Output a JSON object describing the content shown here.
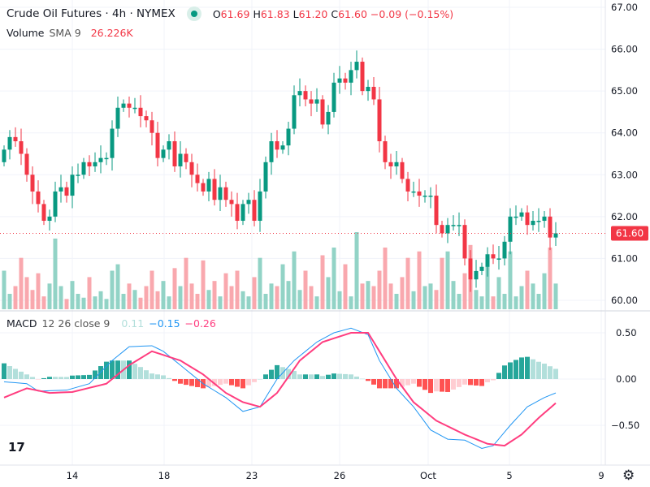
{
  "header": {
    "symbol_title": "Crude Oil Futures · 4h · NYMEX",
    "ohlc": {
      "o_label": "O",
      "o": "61.69",
      "h_label": "H",
      "h": "61.83",
      "l_label": "L",
      "l": "61.20",
      "c_label": "C",
      "c": "61.60",
      "change": "−0.09 (−0.15%)"
    }
  },
  "volume_legend": {
    "name": "Volume",
    "params": "SMA 9",
    "value": "26.226K"
  },
  "macd_legend": {
    "name": "MACD",
    "params": "12 26 close 9",
    "hist": "0.11",
    "macd": "−0.15",
    "signal": "−0.26"
  },
  "colors": {
    "up": "#089981",
    "down": "#f23645",
    "up_vol": "#92d3c6",
    "down_vol": "#f9a8ae",
    "macd": "#2196f3",
    "signal": "#ff3d7f",
    "hist_up_strong": "#26a69a",
    "hist_up_weak": "#b2dfdb",
    "hist_down_strong": "#ff5252",
    "hist_down_weak": "#ffcdd2"
  },
  "price_axis": {
    "labels": [
      "67.00",
      "66.00",
      "65.00",
      "64.00",
      "63.00",
      "62.00",
      "61.00",
      "60.00"
    ],
    "current": "61.60"
  },
  "macd_axis": {
    "labels": [
      "0.50",
      "0.00",
      "−0.50"
    ]
  },
  "time_axis": {
    "labels": [
      "14",
      "18",
      "23",
      "26",
      "Oct",
      "5",
      "9"
    ]
  },
  "chart_data": {
    "type": "candlestick",
    "price_range": [
      60,
      67
    ],
    "closes": [
      63.6,
      63.9,
      63.8,
      63.5,
      63.0,
      62.6,
      62.3,
      61.9,
      62.0,
      62.6,
      62.7,
      62.5,
      63.0,
      63.0,
      63.3,
      63.2,
      63.3,
      63.4,
      63.4,
      64.1,
      64.6,
      64.7,
      64.6,
      64.6,
      64.4,
      64.3,
      64.0,
      63.4,
      63.6,
      63.8,
      63.2,
      63.5,
      63.3,
      63.0,
      62.8,
      62.6,
      62.9,
      62.4,
      62.7,
      62.4,
      62.3,
      61.9,
      62.3,
      62.4,
      61.9,
      62.6,
      63.3,
      63.8,
      63.6,
      63.7,
      64.1,
      64.9,
      65.0,
      64.8,
      64.7,
      64.8,
      64.2,
      64.5,
      65.2,
      65.3,
      65.2,
      65.5,
      65.7,
      65.0,
      65.1,
      64.8,
      63.8,
      63.3,
      63.2,
      63.3,
      62.9,
      62.6,
      62.6,
      62.5,
      62.5,
      62.5,
      61.8,
      61.6,
      61.8,
      61.8,
      61.8,
      61.0,
      60.5,
      60.7,
      60.8,
      61.1,
      61.0,
      61.0,
      61.4,
      62.0,
      62.0,
      62.1,
      61.8,
      61.9,
      61.9,
      62.0,
      61.5,
      61.6
    ],
    "first_open": 63.3,
    "volumes_k": [
      30,
      12,
      18,
      40,
      25,
      15,
      28,
      10,
      20,
      55,
      18,
      8,
      22,
      12,
      9,
      25,
      10,
      14,
      8,
      30,
      35,
      12,
      20,
      15,
      9,
      18,
      30,
      14,
      22,
      10,
      32,
      18,
      40,
      20,
      12,
      38,
      15,
      22,
      10,
      28,
      18,
      30,
      14,
      10,
      25,
      40,
      12,
      20,
      18,
      35,
      22,
      45,
      15,
      30,
      18,
      10,
      42,
      25,
      48,
      14,
      35,
      10,
      60,
      20,
      22,
      18,
      30,
      48,
      20,
      12,
      25,
      40,
      14,
      45,
      18,
      20,
      15,
      40,
      45,
      22,
      12,
      28,
      50,
      15,
      10,
      38,
      10,
      25,
      12,
      45,
      10,
      18,
      30,
      20,
      12,
      28,
      48,
      20
    ],
    "macd_keyframes": [
      [
        0,
        -0.03
      ],
      [
        4,
        -0.05
      ],
      [
        6,
        -0.13
      ],
      [
        11,
        -0.12
      ],
      [
        15,
        -0.05
      ],
      [
        19,
        0.2
      ],
      [
        22,
        0.35
      ],
      [
        26,
        0.36
      ],
      [
        28,
        0.3
      ],
      [
        31,
        0.15
      ],
      [
        35,
        -0.05
      ],
      [
        39,
        -0.2
      ],
      [
        42,
        -0.35
      ],
      [
        45,
        -0.3
      ],
      [
        48,
        0.0
      ],
      [
        51,
        0.2
      ],
      [
        55,
        0.4
      ],
      [
        58,
        0.5
      ],
      [
        61,
        0.55
      ],
      [
        64,
        0.48
      ],
      [
        66,
        0.2
      ],
      [
        69,
        -0.1
      ],
      [
        72,
        -0.3
      ],
      [
        75,
        -0.55
      ],
      [
        78,
        -0.65
      ],
      [
        81,
        -0.66
      ],
      [
        84,
        -0.75
      ],
      [
        86,
        -0.72
      ],
      [
        89,
        -0.5
      ],
      [
        92,
        -0.3
      ],
      [
        95,
        -0.2
      ],
      [
        97,
        -0.15
      ]
    ],
    "signal_keyframes": [
      [
        0,
        -0.2
      ],
      [
        4,
        -0.1
      ],
      [
        8,
        -0.15
      ],
      [
        12,
        -0.14
      ],
      [
        18,
        -0.05
      ],
      [
        22,
        0.15
      ],
      [
        26,
        0.3
      ],
      [
        31,
        0.2
      ],
      [
        35,
        0.05
      ],
      [
        39,
        -0.15
      ],
      [
        42,
        -0.25
      ],
      [
        45,
        -0.3
      ],
      [
        48,
        -0.15
      ],
      [
        52,
        0.2
      ],
      [
        56,
        0.4
      ],
      [
        61,
        0.5
      ],
      [
        64,
        0.5
      ],
      [
        66,
        0.3
      ],
      [
        69,
        0.0
      ],
      [
        72,
        -0.25
      ],
      [
        76,
        -0.45
      ],
      [
        81,
        -0.6
      ],
      [
        85,
        -0.7
      ],
      [
        88,
        -0.72
      ],
      [
        91,
        -0.6
      ],
      [
        94,
        -0.42
      ],
      [
        97,
        -0.26
      ]
    ],
    "macd_range": [
      -0.75,
      0.6
    ]
  }
}
